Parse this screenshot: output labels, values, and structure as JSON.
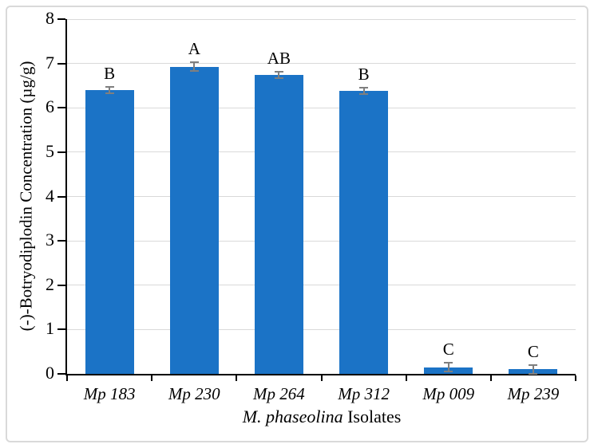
{
  "chart_data": {
    "type": "bar",
    "title": "",
    "categories": [
      "Mp 183",
      "Mp 230",
      "Mp 264",
      "Mp 312",
      "Mp 009",
      "Mp 239"
    ],
    "values": [
      6.4,
      6.93,
      6.75,
      6.38,
      0.15,
      0.1
    ],
    "errors": [
      0.09,
      0.12,
      0.09,
      0.09,
      0.12,
      0.12
    ],
    "sig_letters": [
      "B",
      "A",
      "AB",
      "B",
      "C",
      "C"
    ],
    "ylabel": "(-)-Botryodiplodin Concentration (µg/g)",
    "xlabel_italic": "M. phaseolina",
    "xlabel_regular": "Isolates",
    "ylim": [
      0,
      8
    ],
    "yticks": [
      0,
      1,
      2,
      3,
      4,
      5,
      6,
      7,
      8
    ],
    "grid": true,
    "legend": "none",
    "bar_color": "#1B73C6",
    "error_bar_color": "#7F7F7F",
    "gridline_color": "#D9D9D9",
    "axis_color": "#000000"
  }
}
